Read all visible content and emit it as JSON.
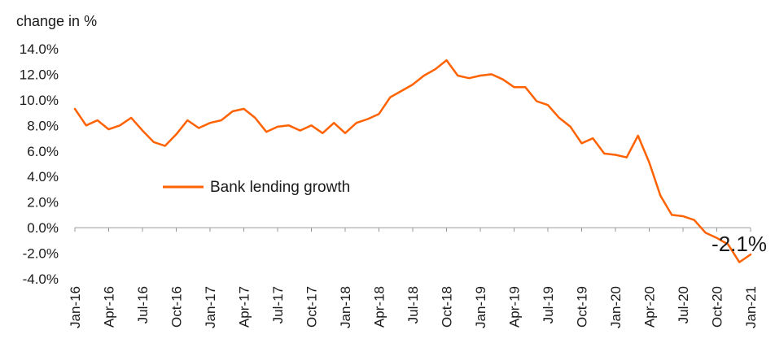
{
  "chart_data": {
    "type": "line",
    "title": "",
    "ylabel": "change in %",
    "xlabel": "",
    "ylim": [
      -4,
      14
    ],
    "yticks": [
      14,
      12,
      10,
      8,
      6,
      4,
      2,
      0,
      -2,
      -4
    ],
    "ytick_labels": [
      "14.0%",
      "12.0%",
      "10.0%",
      "8.0%",
      "6.0%",
      "4.0%",
      "2.0%",
      "0.0%",
      "-2.0%",
      "-4.0%"
    ],
    "x_tick_labels": [
      "Jan-16",
      "Apr-16",
      "Jul-16",
      "Oct-16",
      "Jan-17",
      "Apr-17",
      "Jul-17",
      "Oct-17",
      "Jan-18",
      "Apr-18",
      "Jul-18",
      "Oct-18",
      "Jan-19",
      "Apr-19",
      "Jul-19",
      "Oct-19",
      "Jan-20",
      "Apr-20",
      "Jul-20",
      "Oct-20",
      "Jan-21"
    ],
    "x": [
      "Jan-16",
      "Feb-16",
      "Mar-16",
      "Apr-16",
      "May-16",
      "Jun-16",
      "Jul-16",
      "Aug-16",
      "Sep-16",
      "Oct-16",
      "Nov-16",
      "Dec-16",
      "Jan-17",
      "Feb-17",
      "Mar-17",
      "Apr-17",
      "May-17",
      "Jun-17",
      "Jul-17",
      "Aug-17",
      "Sep-17",
      "Oct-17",
      "Nov-17",
      "Dec-17",
      "Jan-18",
      "Feb-18",
      "Mar-18",
      "Apr-18",
      "May-18",
      "Jun-18",
      "Jul-18",
      "Aug-18",
      "Sep-18",
      "Oct-18",
      "Nov-18",
      "Dec-18",
      "Jan-19",
      "Feb-19",
      "Mar-19",
      "Apr-19",
      "May-19",
      "Jun-19",
      "Jul-19",
      "Aug-19",
      "Sep-19",
      "Oct-19",
      "Nov-19",
      "Dec-19",
      "Jan-20",
      "Feb-20",
      "Mar-20",
      "Apr-20",
      "May-20",
      "Jun-20",
      "Jul-20",
      "Aug-20",
      "Sep-20",
      "Oct-20",
      "Nov-20",
      "Dec-20",
      "Jan-21"
    ],
    "series": [
      {
        "name": "Bank lending growth",
        "color": "#ff6200",
        "values": [
          9.3,
          8.0,
          8.4,
          7.7,
          8.0,
          8.6,
          7.6,
          6.7,
          6.4,
          7.3,
          8.4,
          7.8,
          8.2,
          8.4,
          9.1,
          9.3,
          8.6,
          7.5,
          7.9,
          8.0,
          7.6,
          8.0,
          7.4,
          8.2,
          7.4,
          8.2,
          8.5,
          8.9,
          10.2,
          10.7,
          11.2,
          11.9,
          12.4,
          13.1,
          11.9,
          11.7,
          11.9,
          12.0,
          11.6,
          11.0,
          11.0,
          9.9,
          9.6,
          8.6,
          7.9,
          6.6,
          7.0,
          5.8,
          5.7,
          5.5,
          7.2,
          5.1,
          2.5,
          1.0,
          0.9,
          0.6,
          -0.4,
          -0.8,
          -1.3,
          -2.7,
          -2.1
        ]
      }
    ],
    "annotations": [
      {
        "text": "-2.1%",
        "x": "Jan-21",
        "y": -2.1
      }
    ],
    "grid": false,
    "legend": {
      "placement": "center-left",
      "entries": [
        "Bank lending growth"
      ]
    }
  }
}
